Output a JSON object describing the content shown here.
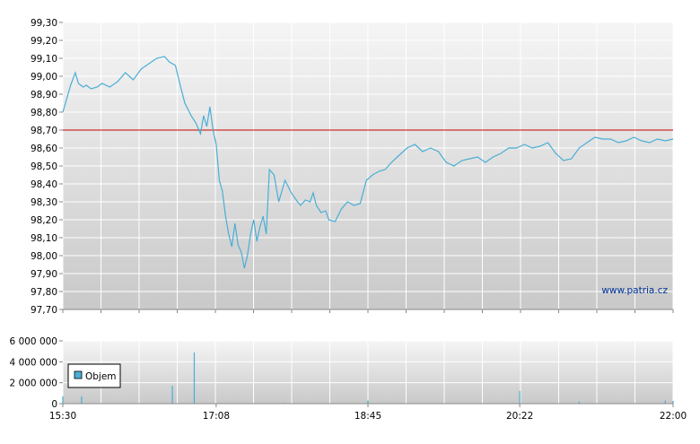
{
  "chart_data": [
    {
      "type": "line",
      "title": "",
      "xlabel": "",
      "ylabel": "",
      "ylim": [
        97.7,
        99.3
      ],
      "xlim": [
        "15:30",
        "22:00"
      ],
      "y_ticks": [
        "99,30",
        "99,20",
        "99,10",
        "99,00",
        "98,90",
        "98,80",
        "98,70",
        "98,60",
        "98,50",
        "98,40",
        "98,30",
        "98,20",
        "98,10",
        "98,00",
        "97,90",
        "97,80",
        "97,70"
      ],
      "reference_line": {
        "value": 98.7,
        "color": "#cc0000"
      },
      "grid": true,
      "line_color": "#4aaed6",
      "watermark": "www.patria.cz",
      "series": [
        {
          "x": [
            "15:30",
            "15:32",
            "15:35",
            "15:38",
            "15:40",
            "15:43",
            "15:45",
            "15:48",
            "15:52",
            "15:55",
            "16:00",
            "16:05",
            "16:10",
            "16:15",
            "16:20",
            "16:25",
            "16:30",
            "16:35",
            "16:38",
            "16:42",
            "16:45",
            "16:48",
            "16:52",
            "16:55",
            "16:58",
            "17:00",
            "17:02",
            "17:04",
            "17:06",
            "17:08",
            "17:10",
            "17:12",
            "17:14",
            "17:16",
            "17:18",
            "17:20",
            "17:22",
            "17:24",
            "17:26",
            "17:28",
            "17:30",
            "17:32",
            "17:34",
            "17:36",
            "17:38",
            "17:40",
            "17:42",
            "17:45",
            "17:48",
            "17:52",
            "17:56",
            "18:00",
            "18:02",
            "18:05",
            "18:08",
            "18:10",
            "18:12",
            "18:15",
            "18:18",
            "18:20",
            "18:24",
            "18:28",
            "18:32",
            "18:36",
            "18:40",
            "18:44",
            "18:48",
            "18:52",
            "18:56",
            "19:00",
            "19:05",
            "19:10",
            "19:15",
            "19:20",
            "19:25",
            "19:30",
            "19:35",
            "19:40",
            "19:45",
            "19:50",
            "19:55",
            "20:00",
            "20:05",
            "20:10",
            "20:15",
            "20:20",
            "20:25",
            "20:30",
            "20:35",
            "20:40",
            "20:45",
            "20:50",
            "20:55",
            "21:00",
            "21:05",
            "21:10",
            "21:15",
            "21:20",
            "21:25",
            "21:30",
            "21:35",
            "21:40",
            "21:45",
            "21:50",
            "21:55",
            "22:00"
          ],
          "y": [
            98.8,
            98.86,
            98.95,
            99.02,
            98.96,
            98.94,
            98.95,
            98.93,
            98.94,
            98.96,
            98.94,
            98.97,
            99.02,
            98.98,
            99.04,
            99.07,
            99.1,
            99.11,
            99.08,
            99.06,
            98.95,
            98.85,
            98.78,
            98.74,
            98.68,
            98.78,
            98.72,
            98.83,
            98.7,
            98.62,
            98.42,
            98.36,
            98.22,
            98.12,
            98.05,
            98.18,
            98.06,
            98.02,
            97.93,
            98.0,
            98.12,
            98.2,
            98.08,
            98.16,
            98.22,
            98.12,
            98.48,
            98.45,
            98.3,
            98.42,
            98.35,
            98.3,
            98.28,
            98.31,
            98.3,
            98.35,
            98.28,
            98.24,
            98.25,
            98.2,
            98.19,
            98.26,
            98.3,
            98.28,
            98.29,
            98.42,
            98.45,
            98.47,
            98.48,
            98.52,
            98.56,
            98.6,
            98.62,
            98.58,
            98.6,
            98.58,
            98.52,
            98.5,
            98.53,
            98.54,
            98.55,
            98.52,
            98.55,
            98.57,
            98.6,
            98.6,
            98.62,
            98.6,
            98.61,
            98.63,
            98.57,
            98.53,
            98.54,
            98.6,
            98.63,
            98.66,
            98.65,
            98.65,
            98.63,
            98.64,
            98.66,
            98.64,
            98.63,
            98.65,
            98.64,
            98.65
          ]
        }
      ]
    },
    {
      "type": "bar",
      "title": "",
      "ylim": [
        0,
        6000000
      ],
      "y_ticks": [
        "6 000 000",
        "4 000 000",
        "2 000 000",
        "0"
      ],
      "x_ticks": [
        "15:30",
        "17:08",
        "18:45",
        "20:22",
        "22:00"
      ],
      "bar_color": "#4aaed6",
      "legend": [
        "Objem"
      ],
      "legend_position": "bottom-left",
      "grid": true,
      "series": [
        {
          "name": "Objem",
          "x": [
            "15:30",
            "15:42",
            "16:40",
            "16:54",
            "17:52",
            "18:45",
            "20:22",
            "21:00",
            "21:55",
            "22:00"
          ],
          "y": [
            700000,
            700000,
            1700000,
            4900000,
            80000,
            300000,
            1200000,
            200000,
            300000,
            250000
          ]
        }
      ]
    }
  ]
}
